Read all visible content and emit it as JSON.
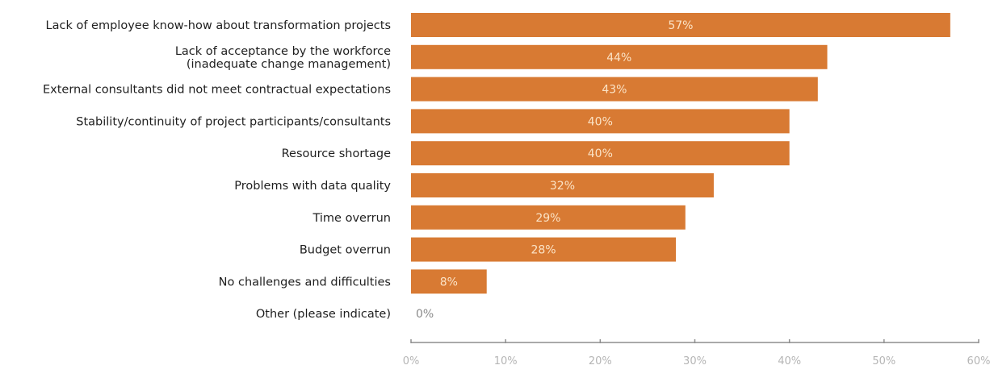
{
  "chart_data": {
    "type": "bar",
    "orientation": "horizontal",
    "title": "",
    "xlabel": "",
    "ylabel": "",
    "categories": [
      [
        "Lack of employee know-how about transformation projects"
      ],
      [
        "Lack of acceptance by the workforce",
        "(inadequate change management)"
      ],
      [
        "External consultants did not meet contractual expectations"
      ],
      [
        "Stability/continuity of project participants/consultants"
      ],
      [
        "Resource shortage"
      ],
      [
        "Problems with data quality"
      ],
      [
        "Time overrun"
      ],
      [
        "Budget overrun"
      ],
      [
        "No challenges and difficulties"
      ],
      [
        "Other (please indicate)"
      ]
    ],
    "values": [
      57,
      44,
      43,
      40,
      40,
      32,
      29,
      28,
      8,
      0
    ],
    "value_labels": [
      "57%",
      "44%",
      "43%",
      "40%",
      "40%",
      "32%",
      "29%",
      "28%",
      "8%",
      "0%"
    ],
    "xlim": [
      0,
      60
    ],
    "xticks": [
      0,
      10,
      20,
      30,
      40,
      50,
      60
    ],
    "xtick_labels": [
      "0%",
      "10%",
      "20%",
      "30%",
      "40%",
      "50%",
      "60%"
    ],
    "grid": false,
    "legend": "none",
    "bar_color": "#d87a33"
  }
}
